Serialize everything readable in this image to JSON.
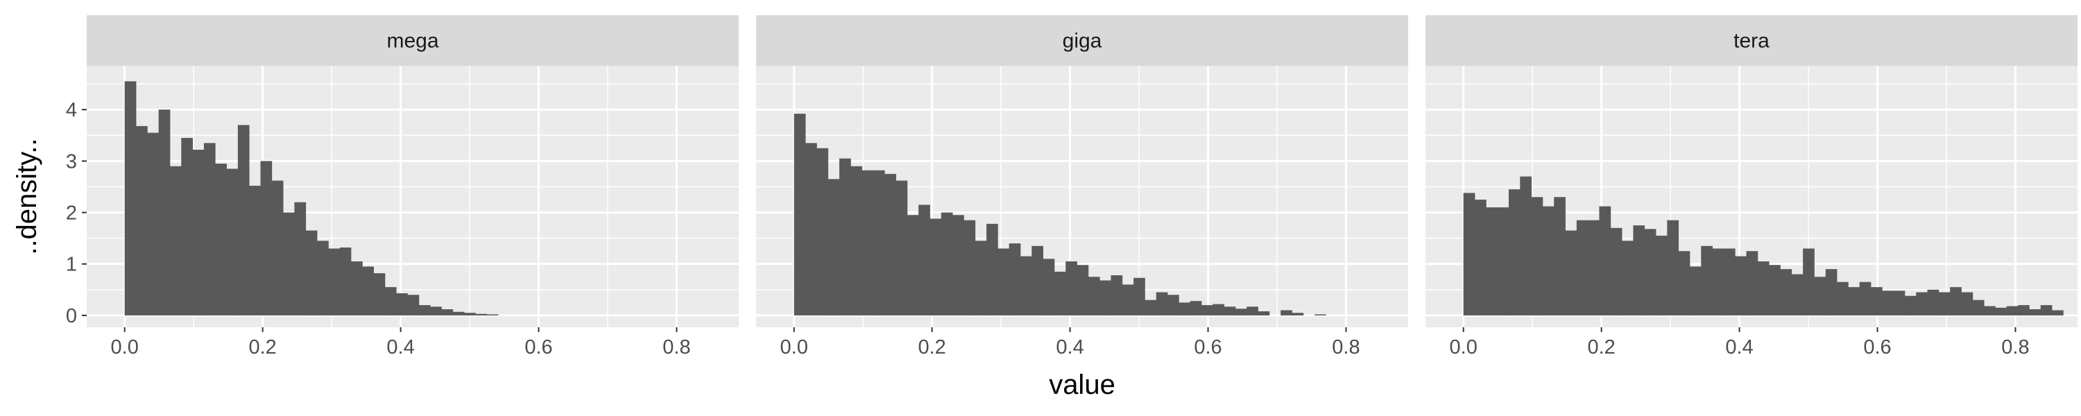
{
  "chart_data": {
    "type": "bar",
    "subtype": "histogram-facets",
    "xlabel": "value",
    "ylabel": "..density..",
    "xlim": [
      -0.055,
      0.89
    ],
    "ylim": [
      -0.23,
      4.85
    ],
    "x_ticks": [
      0.0,
      0.2,
      0.4,
      0.6,
      0.8
    ],
    "x_tick_labels": [
      "0.0",
      "0.2",
      "0.4",
      "0.6",
      "0.8"
    ],
    "y_ticks": [
      0,
      1,
      2,
      3,
      4
    ],
    "y_tick_labels": [
      "0",
      "1",
      "2",
      "3",
      "4"
    ],
    "bin_start": 0.0,
    "bin_width": 0.0164,
    "grid": true,
    "colors": {
      "panel_bg": "#ebebeb",
      "strip_bg": "#d9d9d9",
      "grid": "#ffffff",
      "bar": "#595959",
      "tick": "#333333"
    },
    "facets": [
      {
        "label": "mega",
        "values": [
          4.55,
          3.68,
          3.55,
          4.0,
          2.9,
          3.45,
          3.22,
          3.35,
          2.95,
          2.85,
          3.7,
          2.52,
          3.0,
          2.62,
          2.0,
          2.2,
          1.65,
          1.45,
          1.3,
          1.32,
          1.05,
          0.95,
          0.82,
          0.55,
          0.43,
          0.4,
          0.2,
          0.17,
          0.12,
          0.07,
          0.05,
          0.03,
          0.02
        ]
      },
      {
        "label": "giga",
        "values": [
          3.92,
          3.35,
          3.25,
          2.65,
          3.05,
          2.9,
          2.82,
          2.82,
          2.75,
          2.62,
          1.95,
          2.15,
          1.88,
          2.0,
          1.95,
          1.85,
          1.45,
          1.78,
          1.3,
          1.4,
          1.15,
          1.35,
          1.1,
          0.85,
          1.05,
          0.98,
          0.75,
          0.68,
          0.78,
          0.6,
          0.73,
          0.3,
          0.45,
          0.4,
          0.25,
          0.28,
          0.2,
          0.22,
          0.17,
          0.13,
          0.17,
          0.08,
          0.0,
          0.1,
          0.05,
          0.0,
          0.02
        ]
      },
      {
        "label": "tera",
        "values": [
          2.38,
          2.25,
          2.1,
          2.1,
          2.45,
          2.7,
          2.3,
          2.12,
          2.3,
          1.65,
          1.85,
          1.85,
          2.12,
          1.7,
          1.45,
          1.75,
          1.68,
          1.55,
          1.85,
          1.25,
          0.95,
          1.35,
          1.3,
          1.3,
          1.15,
          1.25,
          1.05,
          0.98,
          0.9,
          0.8,
          1.3,
          0.75,
          0.9,
          0.65,
          0.55,
          0.65,
          0.55,
          0.48,
          0.48,
          0.38,
          0.45,
          0.5,
          0.45,
          0.55,
          0.45,
          0.3,
          0.18,
          0.15,
          0.18,
          0.2,
          0.12,
          0.2,
          0.1
        ]
      }
    ]
  }
}
